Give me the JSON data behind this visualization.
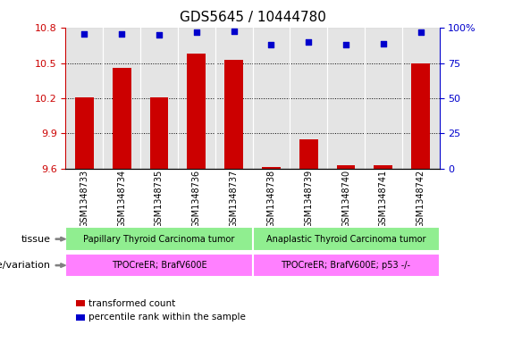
{
  "title": "GDS5645 / 10444780",
  "samples": [
    "GSM1348733",
    "GSM1348734",
    "GSM1348735",
    "GSM1348736",
    "GSM1348737",
    "GSM1348738",
    "GSM1348739",
    "GSM1348740",
    "GSM1348741",
    "GSM1348742"
  ],
  "bar_values": [
    10.21,
    10.46,
    10.21,
    10.58,
    10.53,
    9.61,
    9.85,
    9.63,
    9.63,
    10.5
  ],
  "scatter_values": [
    96,
    96,
    95,
    97,
    98,
    88,
    90,
    88,
    89,
    97
  ],
  "ylim_left": [
    9.6,
    10.8
  ],
  "ylim_right": [
    0,
    100
  ],
  "yticks_left": [
    9.6,
    9.9,
    10.2,
    10.5,
    10.8
  ],
  "yticks_right": [
    0,
    25,
    50,
    75,
    100
  ],
  "bar_color": "#CC0000",
  "scatter_color": "#0000CC",
  "tissue_groups": [
    {
      "label": "Papillary Thyroid Carcinoma tumor",
      "start": 0,
      "end": 5,
      "color": "#90EE90"
    },
    {
      "label": "Anaplastic Thyroid Carcinoma tumor",
      "start": 5,
      "end": 10,
      "color": "#90EE90"
    }
  ],
  "genotype_groups": [
    {
      "label": "TPOCreER; BrafV600E",
      "start": 0,
      "end": 5,
      "color": "#FF80FF"
    },
    {
      "label": "TPOCreER; BrafV600E; p53 -/-",
      "start": 5,
      "end": 10,
      "color": "#FF80FF"
    }
  ],
  "tissue_label": "tissue",
  "genotype_label": "genotype/variation",
  "legend_items": [
    {
      "label": "transformed count",
      "color": "#CC0000"
    },
    {
      "label": "percentile rank within the sample",
      "color": "#0000CC"
    }
  ],
  "bar_bottom": 9.6,
  "right_axis_color": "#0000CC",
  "left_axis_color": "#CC0000",
  "grid_dotted_at": [
    9.9,
    10.2,
    10.5
  ]
}
